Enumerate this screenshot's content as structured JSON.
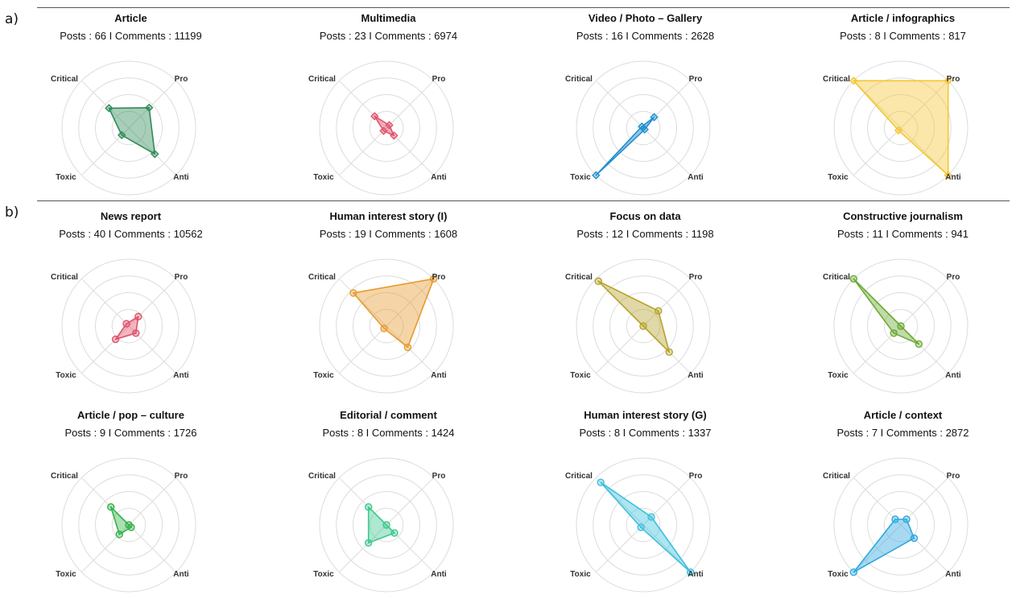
{
  "panels": [
    {
      "label": "a)"
    },
    {
      "label": "b)"
    }
  ],
  "axes": [
    "Critical",
    "Pro",
    "Anti",
    "Toxic"
  ],
  "chart_data": [
    {
      "type": "radar",
      "panel": "a",
      "title": "Article",
      "subtitle": "Posts :  66 I Comments :  11199",
      "color": "#2e8b57",
      "marker": "diamond",
      "values": {
        "Critical": 0.42,
        "Pro": 0.43,
        "Anti": 0.55,
        "Toxic": 0.15
      }
    },
    {
      "type": "radar",
      "panel": "a",
      "title": "Multimedia",
      "subtitle": "Posts :  23 I Comments :  6974",
      "color": "#e0506a",
      "marker": "diamond",
      "values": {
        "Critical": 0.25,
        "Pro": 0.06,
        "Anti": 0.16,
        "Toxic": 0.06
      }
    },
    {
      "type": "radar",
      "panel": "a",
      "title": "Video / Photo – Gallery",
      "subtitle": "Posts :  16 I Comments :  2628",
      "color": "#1f8fd0",
      "marker": "diamond",
      "values": {
        "Critical": 0.03,
        "Pro": 0.23,
        "Anti": 0.03,
        "Toxic": 1.0
      }
    },
    {
      "type": "radar",
      "panel": "a",
      "title": "Article / infographics",
      "subtitle": "Posts :  8 I Comments :  817",
      "color": "#f5c531",
      "marker": "diamond",
      "values": {
        "Critical": 1.0,
        "Pro": 1.0,
        "Anti": 1.0,
        "Toxic": 0.05
      }
    },
    {
      "type": "radar",
      "panel": "b",
      "title": "News report",
      "subtitle": "Posts :  40 I Comments :  10562",
      "color": "#e0506a",
      "marker": "circle",
      "values": {
        "Critical": 0.05,
        "Pro": 0.2,
        "Anti": 0.15,
        "Toxic": 0.28
      }
    },
    {
      "type": "radar",
      "panel": "b",
      "title": "Human interest story (I)",
      "subtitle": "Posts :  19 I Comments :  1608",
      "color": "#e89a2e",
      "marker": "circle",
      "values": {
        "Critical": 0.7,
        "Pro": 1.0,
        "Anti": 0.45,
        "Toxic": 0.05
      }
    },
    {
      "type": "radar",
      "panel": "b",
      "title": "Focus on data",
      "subtitle": "Posts :  12 I Comments :  1198",
      "color": "#b5a22a",
      "marker": "circle",
      "values": {
        "Critical": 0.95,
        "Pro": 0.32,
        "Anti": 0.55,
        "Toxic": 0.0
      }
    },
    {
      "type": "radar",
      "panel": "b",
      "title": "Constructive journalism",
      "subtitle": "Posts :  11 I Comments :  941",
      "color": "#6aaa32",
      "marker": "circle",
      "values": {
        "Critical": 1.0,
        "Pro": 0.0,
        "Anti": 0.38,
        "Toxic": 0.15
      }
    },
    {
      "type": "radar",
      "panel": "b",
      "title": "Article / pop – culture",
      "subtitle": "Posts :  9 I Comments :  1726",
      "color": "#35b34a",
      "marker": "circle",
      "values": {
        "Critical": 0.38,
        "Pro": 0.0,
        "Anti": 0.05,
        "Toxic": 0.2
      }
    },
    {
      "type": "radar",
      "panel": "b",
      "title": "Editorial / comment",
      "subtitle": "Posts :  8 I Comments :  1424",
      "color": "#3ec88e",
      "marker": "circle",
      "values": {
        "Critical": 0.38,
        "Pro": 0.0,
        "Anti": 0.17,
        "Toxic": 0.38
      }
    },
    {
      "type": "radar",
      "panel": "b",
      "title": "Human interest story (G)",
      "subtitle": "Posts :  8 I Comments :  1337",
      "color": "#3cc0dc",
      "marker": "circle",
      "values": {
        "Critical": 0.9,
        "Pro": 0.17,
        "Anti": 1.0,
        "Toxic": 0.05
      }
    },
    {
      "type": "radar",
      "panel": "b",
      "title": "Article / context",
      "subtitle": "Posts :  7 I Comments :  2872",
      "color": "#2ea8e0",
      "marker": "circle",
      "values": {
        "Critical": 0.12,
        "Pro": 0.12,
        "Anti": 0.28,
        "Toxic": 1.0
      }
    }
  ]
}
